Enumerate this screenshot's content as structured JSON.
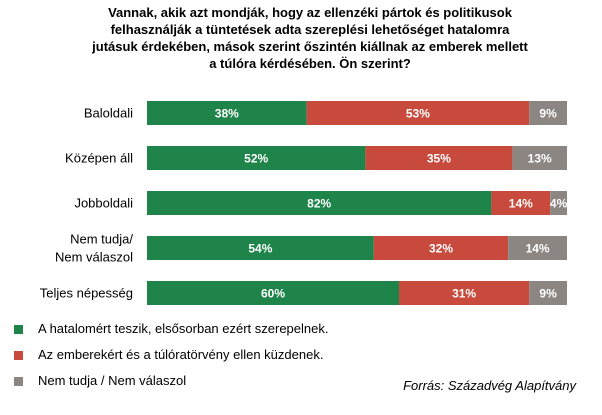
{
  "chart_data": {
    "type": "bar",
    "orientation": "horizontal",
    "stacked": true,
    "title_lines": [
      "Vannak, akik azt mondják, hogy az ellenzéki pártok és politikusok",
      "felhasználják a tüntetések adta szereplési lehetőséget hatalomra",
      "jutásuk érdekében, mások szerint őszintén kiállnak az emberek mellett",
      "a túlóra kérdésében. Ön szerint?"
    ],
    "categories": [
      [
        "Baloldali"
      ],
      [
        "Középen áll"
      ],
      [
        "Jobboldali"
      ],
      [
        "Nem tudja/",
        "Nem válaszol"
      ],
      [
        "Teljes népesség"
      ]
    ],
    "series": [
      {
        "name": "A hatalomért teszik, elsősorban ezért szerepelnek.",
        "color": "#1e8449",
        "values": [
          38,
          52,
          82,
          54,
          60
        ]
      },
      {
        "name": "Az emberekért és a túlóratörvény ellen küzdenek.",
        "color": "#c84a3c",
        "values": [
          53,
          35,
          14,
          32,
          31
        ]
      },
      {
        "name": "Nem tudja / Nem válaszol",
        "color": "#8c8682",
        "values": [
          9,
          13,
          4,
          14,
          9
        ]
      }
    ],
    "value_suffix": "%",
    "xlim": [
      0,
      100
    ],
    "legend_position": "bottom-left",
    "grid": false
  },
  "source": "Forrás: Századvég Alapítvány"
}
